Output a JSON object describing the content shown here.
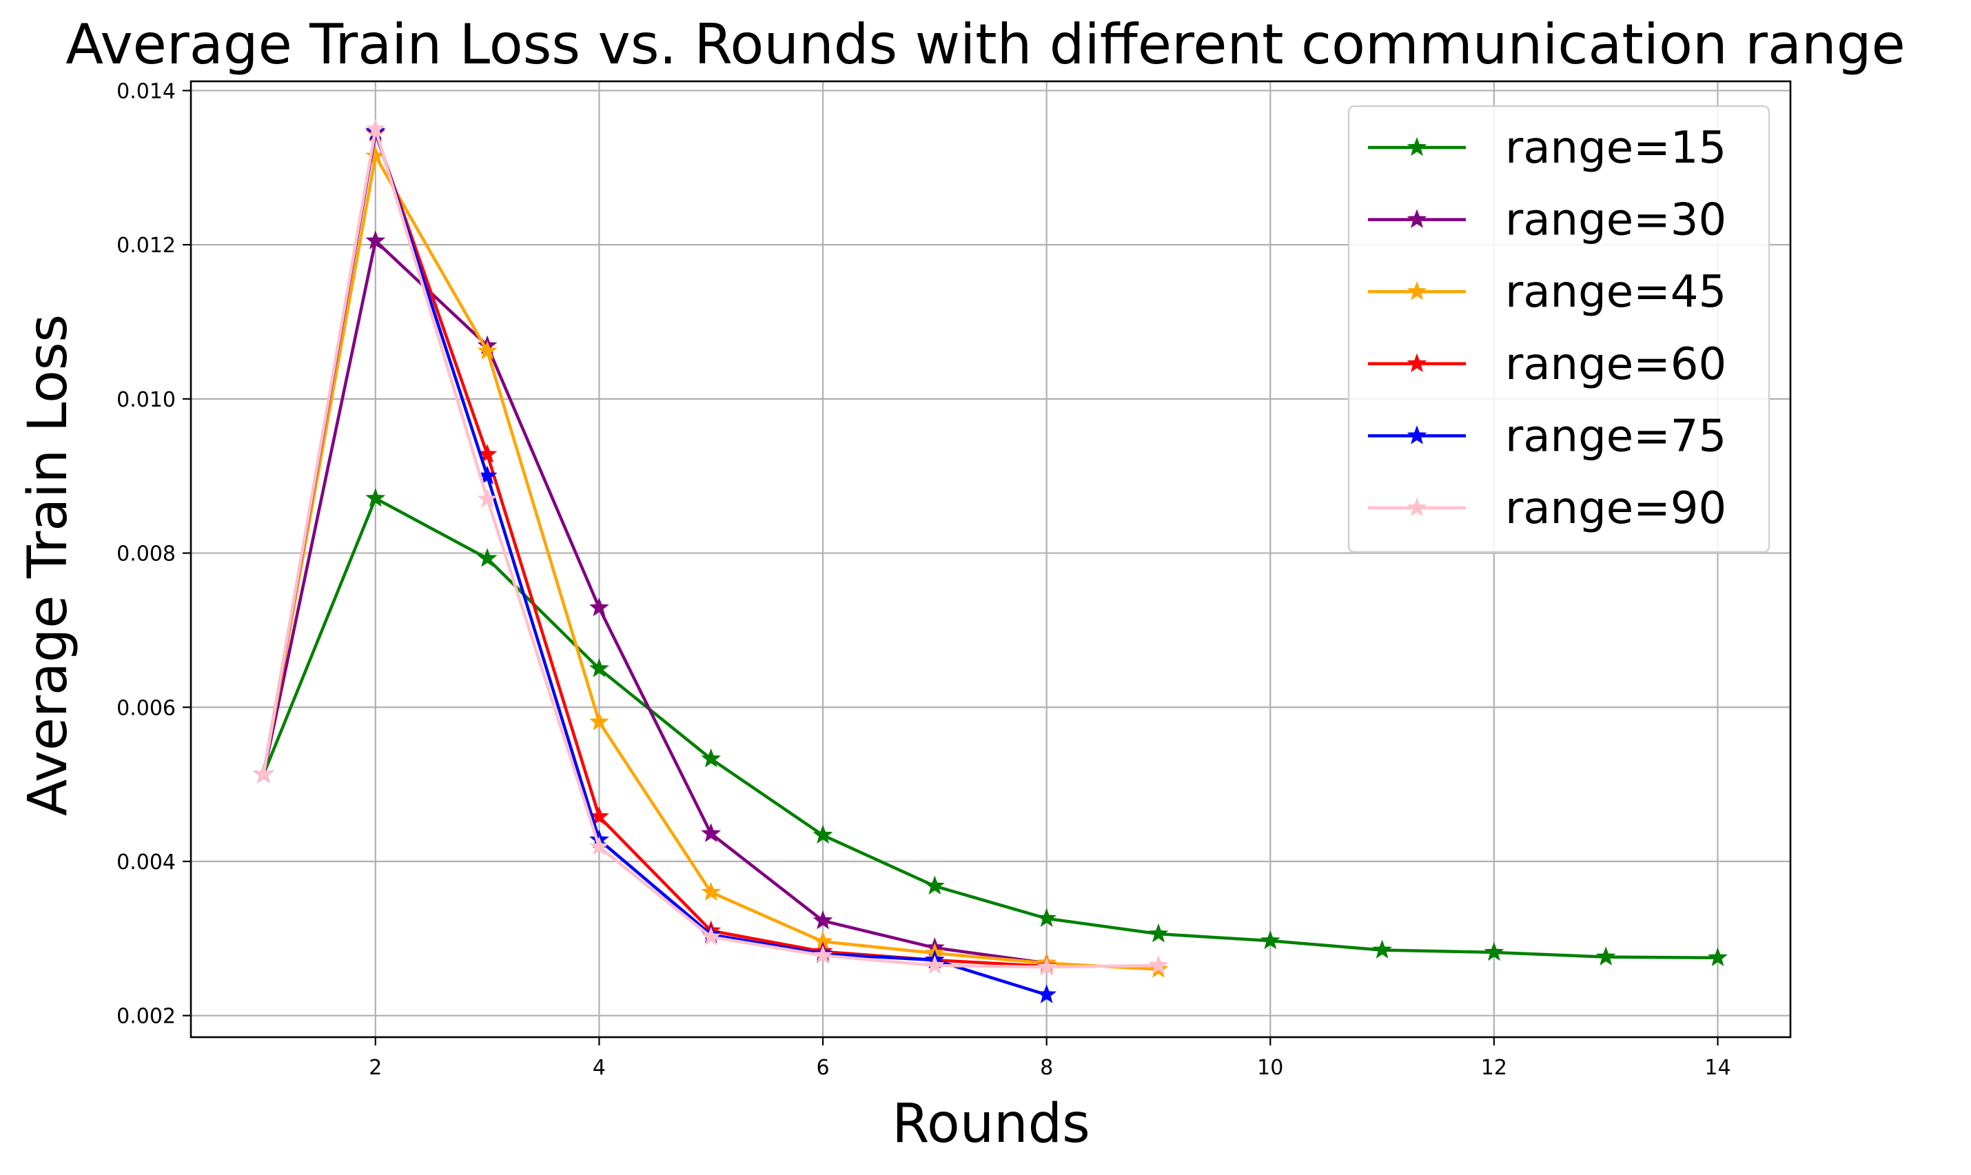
{
  "chart_data": {
    "type": "line",
    "title": "Average Train Loss vs. Rounds with different communication range",
    "xlabel": "Rounds",
    "ylabel": "Average Train Loss",
    "xlim": [
      0.35,
      14.65
    ],
    "ylim": [
      0.00172,
      0.01412
    ],
    "xticks": [
      2,
      4,
      6,
      8,
      10,
      12,
      14
    ],
    "xtick_labels": [
      "2",
      "4",
      "6",
      "8",
      "10",
      "12",
      "14"
    ],
    "yticks": [
      0.002,
      0.004,
      0.006,
      0.008,
      0.01,
      0.012,
      0.014
    ],
    "ytick_labels": [
      "0.002",
      "0.004",
      "0.006",
      "0.008",
      "0.010",
      "0.012",
      "0.014"
    ],
    "grid": true,
    "legend_position": "top-right",
    "marker": "star",
    "series": [
      {
        "name": "range=15",
        "color": "#008000",
        "x": [
          1,
          2,
          3,
          4,
          5,
          6,
          7,
          8,
          9,
          10,
          11,
          12,
          13,
          14
        ],
        "values": [
          0.00513,
          0.00871,
          0.00793,
          0.0065,
          0.00533,
          0.00434,
          0.00368,
          0.00326,
          0.00306,
          0.00297,
          0.00285,
          0.00282,
          0.00276,
          0.00275
        ]
      },
      {
        "name": "range=30",
        "color": "#800080",
        "x": [
          1,
          2,
          3,
          4,
          5,
          6,
          7,
          8
        ],
        "values": [
          0.00513,
          0.01205,
          0.01069,
          0.00729,
          0.00436,
          0.00323,
          0.00288,
          0.00268
        ]
      },
      {
        "name": "range=45",
        "color": "#ffa500",
        "x": [
          1,
          2,
          3,
          4,
          5,
          6,
          7,
          8,
          9
        ],
        "values": [
          0.00513,
          0.01315,
          0.01062,
          0.00581,
          0.0036,
          0.00296,
          0.00281,
          0.00268,
          0.0026
        ]
      },
      {
        "name": "range=60",
        "color": "#ff0000",
        "x": [
          1,
          2,
          3,
          4,
          5,
          6,
          7,
          8
        ],
        "values": [
          0.00513,
          0.01345,
          0.00928,
          0.00458,
          0.0031,
          0.00283,
          0.00272,
          0.00264
        ]
      },
      {
        "name": "range=75",
        "color": "#0000ff",
        "x": [
          1,
          2,
          3,
          4,
          5,
          6,
          7,
          8
        ],
        "values": [
          0.00513,
          0.01347,
          0.009,
          0.00428,
          0.00305,
          0.0028,
          0.00272,
          0.00227
        ]
      },
      {
        "name": "range=90",
        "color": "#ffc0cb",
        "x": [
          1,
          2,
          3,
          4,
          5,
          6,
          7,
          8,
          9
        ],
        "values": [
          0.00513,
          0.0135,
          0.0087,
          0.00419,
          0.00302,
          0.00278,
          0.00265,
          0.00263,
          0.00265
        ]
      }
    ]
  }
}
